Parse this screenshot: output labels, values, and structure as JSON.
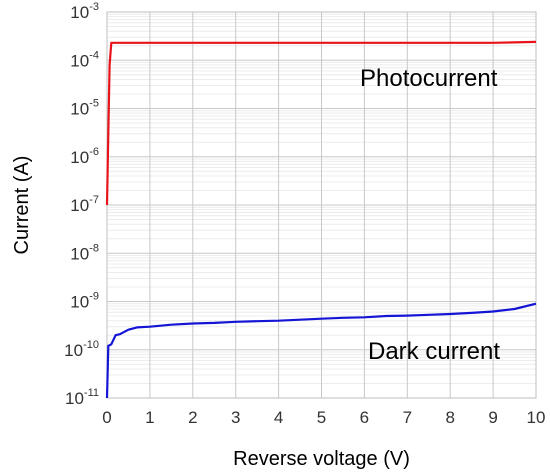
{
  "chart_data": {
    "type": "line",
    "title": "",
    "xlabel": "Reverse voltage (V)",
    "ylabel": "Current (A)",
    "xlim": [
      0,
      10
    ],
    "ylim": [
      1e-11,
      0.001
    ],
    "yscale": "log",
    "grid": true,
    "x_ticks": [
      "0",
      "1",
      "2",
      "3",
      "4",
      "5",
      "6",
      "7",
      "8",
      "9",
      "10"
    ],
    "y_ticks": [
      {
        "base": "10",
        "exp": "-3"
      },
      {
        "base": "10",
        "exp": "-4"
      },
      {
        "base": "10",
        "exp": "-5"
      },
      {
        "base": "10",
        "exp": "-6"
      },
      {
        "base": "10",
        "exp": "-7"
      },
      {
        "base": "10",
        "exp": "-8"
      },
      {
        "base": "10",
        "exp": "-9"
      },
      {
        "base": "10",
        "exp": "-10"
      },
      {
        "base": "10",
        "exp": "-11"
      }
    ],
    "series": [
      {
        "color": "#e8141b",
        "x": [
          0.0,
          0.03,
          0.06,
          0.1,
          0.5,
          1,
          2,
          3,
          4,
          5,
          6,
          7,
          8,
          9,
          10
        ],
        "y": [
          1e-07,
          3e-06,
          8e-05,
          0.00023,
          0.00023,
          0.00023,
          0.00023,
          0.00023,
          0.00023,
          0.00023,
          0.00023,
          0.00023,
          0.00023,
          0.00023,
          0.00024
        ]
      },
      {
        "color": "#1515d6",
        "x": [
          0.0,
          0.03,
          0.1,
          0.2,
          0.3,
          0.5,
          0.7,
          1,
          1.5,
          2,
          2.5,
          3,
          3.5,
          4,
          4.5,
          5,
          5.5,
          6,
          6.5,
          7,
          7.5,
          8,
          8.5,
          9,
          9.5,
          10
        ],
        "y": [
          1e-11,
          1.2e-10,
          1.3e-10,
          2e-10,
          2.1e-10,
          2.6e-10,
          2.9e-10,
          3e-10,
          3.3e-10,
          3.5e-10,
          3.6e-10,
          3.8e-10,
          3.9e-10,
          4e-10,
          4.2e-10,
          4.4e-10,
          4.6e-10,
          4.7e-10,
          5e-10,
          5.1e-10,
          5.3e-10,
          5.5e-10,
          5.8e-10,
          6.2e-10,
          7e-10,
          9e-10
        ]
      }
    ],
    "annotations": [
      {
        "text": "Photocurrent"
      },
      {
        "text": "Dark current"
      }
    ]
  }
}
